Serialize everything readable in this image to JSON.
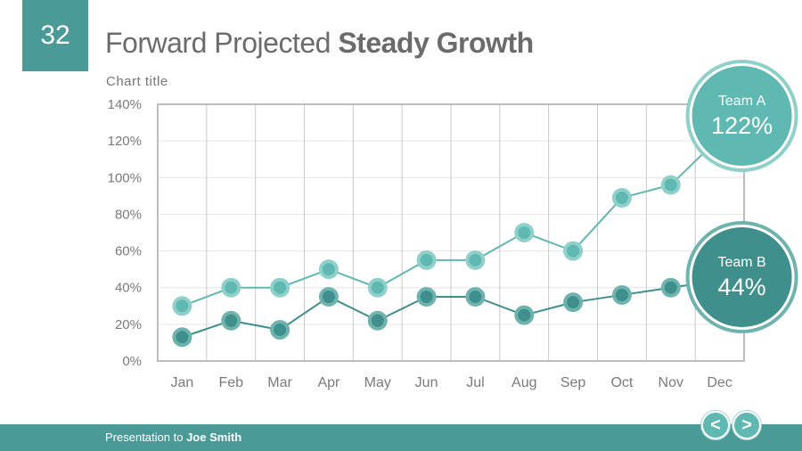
{
  "slide": {
    "number": "32",
    "title_light": "Forward Projected",
    "title_bold": "Steady Growth"
  },
  "footer": {
    "prefix": "Presentation to",
    "name": "Joe Smith"
  },
  "nav": {
    "prev_label": "<",
    "next_label": ">"
  },
  "colors": {
    "accent": "#4a9a98",
    "team_a": "#5fb8b2",
    "team_b": "#3f8f8c",
    "grid": "#c8c8c8"
  },
  "chart_data": {
    "type": "line",
    "title": "Chart title",
    "categories": [
      "Jan",
      "Feb",
      "Mar",
      "Apr",
      "May",
      "Jun",
      "Jul",
      "Aug",
      "Sep",
      "Oct",
      "Nov",
      "Dec"
    ],
    "ylim": [
      0,
      140
    ],
    "yticks": [
      "0%",
      "20%",
      "40%",
      "60%",
      "80%",
      "100%",
      "120%",
      "140%"
    ],
    "ytick_values": [
      0,
      20,
      40,
      60,
      80,
      100,
      120,
      140
    ],
    "series": [
      {
        "name": "Team A",
        "values": [
          30,
          40,
          40,
          50,
          40,
          55,
          55,
          70,
          60,
          89,
          96,
          122
        ],
        "callout": "122%"
      },
      {
        "name": "Team B",
        "values": [
          13,
          22,
          17,
          35,
          22,
          35,
          35,
          25,
          32,
          36,
          40,
          44
        ],
        "callout": "44%"
      }
    ]
  }
}
